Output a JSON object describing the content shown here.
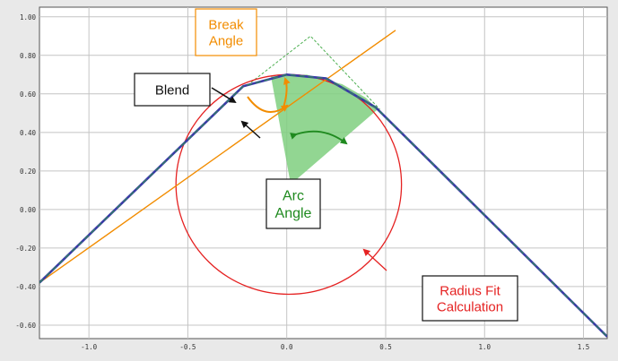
{
  "chart_data": {
    "type": "line",
    "title": "",
    "xlabel": "",
    "ylabel": "",
    "xlim": [
      -1.25,
      1.62
    ],
    "ylim": [
      -0.67,
      1.05
    ],
    "grid": true,
    "x_ticks": [
      "-1.0",
      "-0.5",
      "0.0",
      "0.5",
      "1.0",
      "1.5"
    ],
    "y_ticks": [
      "1.00",
      "0.80",
      "0.60",
      "0.40",
      "0.20",
      "0.00",
      "-0.20",
      "-0.40",
      "-0.60"
    ],
    "series": [
      {
        "name": "",
        "color": "#3a3aa8",
        "x": [
          -1.25,
          -0.22,
          0.0,
          0.2,
          0.45,
          1.62
        ],
        "y": [
          -0.38,
          0.64,
          0.7,
          0.68,
          0.53,
          -0.66
        ]
      },
      {
        "name": "",
        "color": "#f28c00",
        "x": [
          -1.25,
          0.55
        ],
        "y": [
          -0.38,
          0.93
        ]
      },
      {
        "name": "",
        "color": "#e52222",
        "x": [
          0.45,
          1.62
        ],
        "y": [
          0.53,
          -0.66
        ]
      }
    ],
    "circle_fit": {
      "center": [
        0.01,
        0.13
      ],
      "radius": 0.57
    },
    "guide_lines": {
      "x": [
        -0.18,
        0.12,
        0.47
      ],
      "y": [
        0.66,
        0.9,
        0.52
      ]
    },
    "annotations": [
      {
        "id": "break",
        "text_lines": [
          "Break",
          "Angle"
        ],
        "color": "#f28c00"
      },
      {
        "id": "blend",
        "text_lines": [
          "Blend"
        ],
        "color": "#111111"
      },
      {
        "id": "arc",
        "text_lines": [
          "Arc",
          "Angle"
        ],
        "color": "#1f8a1f"
      },
      {
        "id": "radius",
        "text_lines": [
          "Radius Fit",
          "Calculation"
        ],
        "color": "#e52222"
      }
    ]
  }
}
